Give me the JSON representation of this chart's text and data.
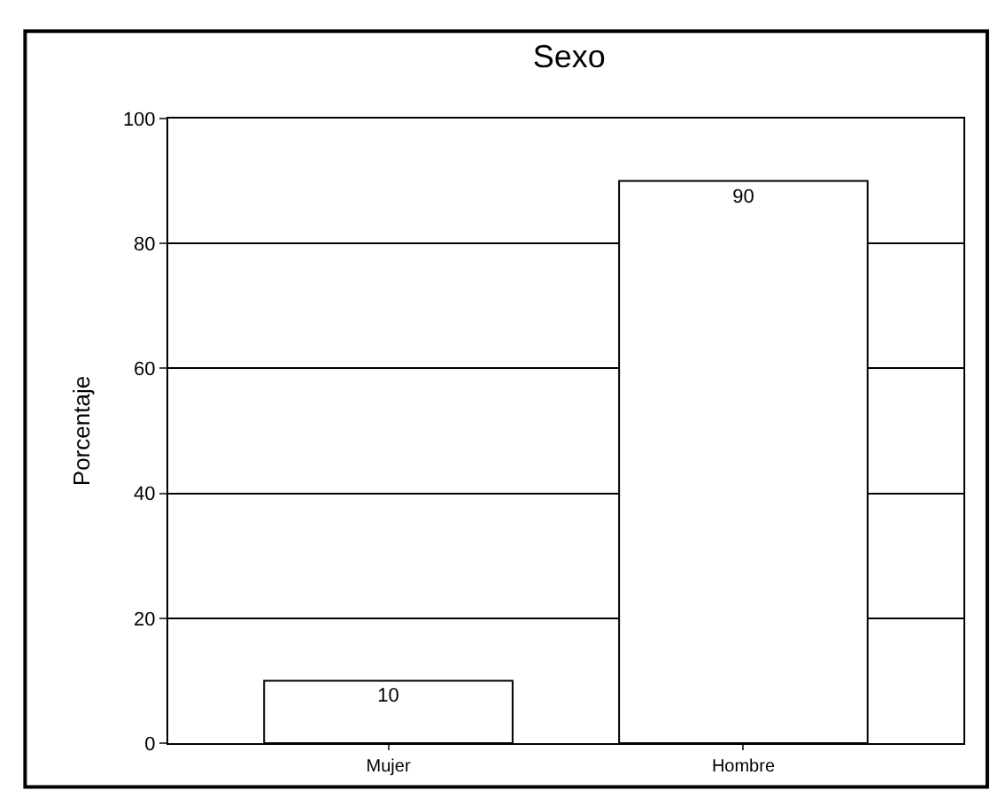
{
  "chart_data": {
    "type": "bar",
    "title": "Sexo",
    "ylabel": "Porcentaje",
    "categories": [
      "Mujer",
      "Hombre"
    ],
    "values": [
      10,
      90
    ],
    "color": "#ffffff",
    "ylim": [
      0,
      100
    ],
    "yticks": [
      0,
      20,
      40,
      60,
      80,
      100
    ],
    "grid": "y",
    "data_labels": true
  }
}
